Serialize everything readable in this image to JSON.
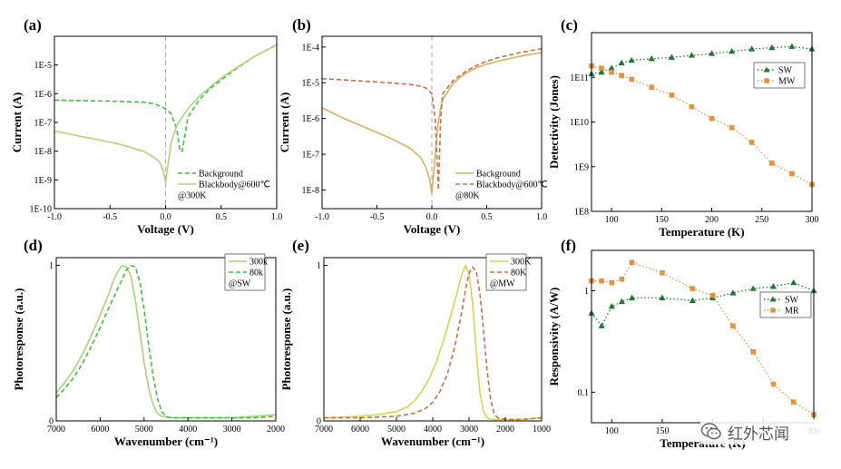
{
  "chart_data": [
    {
      "id": "a",
      "panel_label": "(a)",
      "type": "line",
      "xscale": "linear",
      "yscale": "log",
      "xlabel": "Voltage (V)",
      "ylabel": "Current (A)",
      "xlim": [
        -1.0,
        1.0
      ],
      "ylim": [
        1e-10,
        0.0001
      ],
      "xticks": [
        -1.0,
        -0.5,
        0.0,
        0.5,
        1.0
      ],
      "xtick_labels": [
        "-1.0",
        "-0.5",
        "0.0",
        "0.5",
        "1.0"
      ],
      "yticks": [
        1e-10,
        1e-09,
        1e-08,
        1e-07,
        1e-06,
        1e-05
      ],
      "ytick_labels": [
        "1E-10",
        "1E-9",
        "1E-8",
        "1E-7",
        "1E-6",
        "1E-5"
      ],
      "vline": 0.0,
      "legend_position": "bottom-right",
      "annotation": "@300K",
      "series": [
        {
          "name": "Background",
          "color": "#3cbf3c",
          "style": "dashed",
          "x": [
            -1.0,
            -0.8,
            -0.6,
            -0.4,
            -0.2,
            -0.1,
            0.0,
            0.05,
            0.1,
            0.13,
            0.15,
            0.2,
            0.3,
            0.4,
            0.5,
            0.6,
            0.8,
            1.0
          ],
          "y": [
            6e-07,
            5.8e-07,
            5.6e-07,
            5.4e-07,
            5.1e-07,
            4.5e-07,
            3e-07,
            2e-07,
            6e-08,
            1e-08,
            1e-08,
            1.5e-07,
            6e-07,
            1.5e-06,
            3e-06,
            6e-06,
            2e-05,
            5e-05
          ]
        },
        {
          "name": "Blackbody@600℃",
          "color": "#a8d878",
          "style": "solid",
          "x": [
            -1.0,
            -0.8,
            -0.6,
            -0.4,
            -0.2,
            -0.1,
            -0.05,
            -0.02,
            0.0,
            0.02,
            0.05,
            0.1,
            0.2,
            0.3,
            0.4,
            0.5,
            0.6,
            0.8,
            1.0
          ],
          "y": [
            5e-08,
            3.5e-08,
            2.5e-08,
            1.7e-08,
            1e-08,
            6e-09,
            4e-09,
            2e-09,
            8e-10,
            3e-09,
            2e-08,
            8e-08,
            3e-07,
            8e-07,
            1.7e-06,
            3.5e-06,
            6.5e-06,
            2e-05,
            5e-05
          ]
        }
      ]
    },
    {
      "id": "b",
      "panel_label": "(b)",
      "type": "line",
      "xscale": "linear",
      "yscale": "log",
      "xlabel": "Voltage (V)",
      "ylabel": "Current (A)",
      "xlim": [
        -1.0,
        1.0
      ],
      "ylim": [
        3e-09,
        0.0002
      ],
      "xticks": [
        -1.0,
        -0.5,
        0.0,
        0.5,
        1.0
      ],
      "xtick_labels": [
        "-1.0",
        "-0.5",
        "0.0",
        "0.5",
        "1.0"
      ],
      "yticks": [
        1e-08,
        1e-07,
        1e-06,
        1e-05,
        0.0001
      ],
      "ytick_labels": [
        "1E-8",
        "1E-7",
        "1E-6",
        "1E-5",
        "1E-4"
      ],
      "vline": 0.0,
      "legend_position": "bottom-right",
      "annotation": "@80K",
      "series": [
        {
          "name": "Background",
          "color": "#d9b05a",
          "style": "solid",
          "x": [
            -1.0,
            -0.8,
            -0.6,
            -0.4,
            -0.2,
            -0.1,
            -0.05,
            -0.02,
            0.0,
            0.02,
            0.05,
            0.08,
            0.1,
            0.2,
            0.3,
            0.4,
            0.5,
            0.6,
            0.8,
            1.0
          ],
          "y": [
            2e-06,
            1e-06,
            5.5e-07,
            3e-07,
            1.5e-07,
            8e-08,
            4e-08,
            2e-08,
            8e-09,
            4e-08,
            5e-07,
            2e-06,
            3.5e-06,
            1e-05,
            1.8e-05,
            2.6e-05,
            3.3e-05,
            4e-05,
            5.5e-05,
            7e-05
          ]
        },
        {
          "name": "Blackbody@600℃",
          "color": "#cd6d45",
          "style": "dashed",
          "x": [
            -1.0,
            -0.8,
            -0.6,
            -0.4,
            -0.2,
            -0.1,
            -0.05,
            0.0,
            0.03,
            0.05,
            0.06,
            0.08,
            0.1,
            0.2,
            0.3,
            0.4,
            0.5,
            0.6,
            0.8,
            1.0
          ],
          "y": [
            1.3e-05,
            1.2e-05,
            1.1e-05,
            1e-05,
            9e-06,
            8e-06,
            7e-06,
            5e-06,
            1e-06,
            5e-08,
            1e-08,
            1e-06,
            5e-06,
            1.2e-05,
            2e-05,
            3e-05,
            4e-05,
            5e-05,
            7e-05,
            9e-05
          ]
        }
      ]
    },
    {
      "id": "c",
      "panel_label": "(c)",
      "type": "line",
      "xscale": "linear",
      "yscale": "log",
      "xlabel": "Temperature (K)",
      "ylabel": "Detectivity (Jones)",
      "xlim": [
        80,
        300
      ],
      "ylim": [
        100000000.0,
        1000000000000.0
      ],
      "xticks": [
        100,
        150,
        200,
        250,
        300
      ],
      "xtick_labels": [
        "100",
        "150",
        "200",
        "250",
        "300"
      ],
      "yticks": [
        100000000.0,
        1000000000.0,
        10000000000.0,
        100000000000.0
      ],
      "ytick_labels": [
        "1E8",
        "1E9",
        "1E10",
        "1E11"
      ],
      "legend_position": "top-right",
      "series": [
        {
          "name": "SW",
          "color": "#1e7a33",
          "style": "dotted",
          "marker": "triangle",
          "x": [
            80,
            90,
            100,
            110,
            120,
            140,
            160,
            180,
            200,
            220,
            240,
            260,
            280,
            300
          ],
          "y": [
            120000000000.0,
            130000000000.0,
            160000000000.0,
            210000000000.0,
            240000000000.0,
            260000000000.0,
            280000000000.0,
            310000000000.0,
            340000000000.0,
            380000000000.0,
            430000000000.0,
            460000000000.0,
            490000000000.0,
            430000000000.0
          ]
        },
        {
          "name": "MW",
          "color": "#e8913a",
          "style": "dotted",
          "marker": "square",
          "x": [
            80,
            90,
            100,
            110,
            120,
            140,
            160,
            180,
            200,
            220,
            240,
            260,
            280,
            300
          ],
          "y": [
            180000000000.0,
            160000000000.0,
            130000000000.0,
            110000000000.0,
            90000000000.0,
            60000000000.0,
            40000000000.0,
            22000000000.0,
            12000000000.0,
            7500000000.0,
            3500000000.0,
            1200000000.0,
            700000000.0,
            400000000.0
          ]
        }
      ]
    },
    {
      "id": "d",
      "panel_label": "(d)",
      "type": "line",
      "xscale": "linear",
      "yscale": "linear",
      "xlabel": "Wavenumber (cm⁻¹)",
      "ylabel": "Photoresponse (a.u.)",
      "xlim": [
        7000,
        2000
      ],
      "ylim": [
        0,
        1.05
      ],
      "xticks": [
        7000,
        6000,
        5000,
        4000,
        3000,
        2000
      ],
      "xtick_labels": [
        "7000",
        "6000",
        "5000",
        "4000",
        "3000",
        "2000"
      ],
      "yticks": [
        0,
        1
      ],
      "ytick_labels": [
        "0",
        "1"
      ],
      "legend_position": "top-right",
      "annotation": "@SW",
      "series": [
        {
          "name": "300k",
          "color": "#a9d576",
          "style": "solid",
          "x": [
            7000,
            6800,
            6600,
            6400,
            6200,
            6000,
            5800,
            5700,
            5600,
            5500,
            5400,
            5300,
            5200,
            5100,
            5000,
            4900,
            4800,
            4700,
            4600,
            4400,
            4200,
            4000,
            3000,
            2500,
            2000
          ],
          "y": [
            0.18,
            0.25,
            0.33,
            0.43,
            0.55,
            0.68,
            0.82,
            0.9,
            0.96,
            1.0,
            0.99,
            0.93,
            0.78,
            0.58,
            0.38,
            0.22,
            0.11,
            0.05,
            0.03,
            0.02,
            0.02,
            0.02,
            0.02,
            0.03,
            0.04
          ]
        },
        {
          "name": "80k",
          "color": "#3cbf3c",
          "style": "dashed",
          "x": [
            7000,
            6800,
            6600,
            6400,
            6200,
            6000,
            5800,
            5600,
            5500,
            5400,
            5300,
            5200,
            5100,
            5000,
            4900,
            4800,
            4700,
            4600,
            4500,
            4400,
            4200,
            4000,
            3000,
            2500,
            2000
          ],
          "y": [
            0.15,
            0.21,
            0.28,
            0.37,
            0.48,
            0.6,
            0.73,
            0.85,
            0.91,
            0.97,
            1.0,
            0.99,
            0.9,
            0.72,
            0.5,
            0.3,
            0.15,
            0.06,
            0.03,
            0.02,
            0.02,
            0.02,
            0.02,
            0.02,
            0.03
          ]
        }
      ]
    },
    {
      "id": "e",
      "panel_label": "(e)",
      "type": "line",
      "xscale": "linear",
      "yscale": "linear",
      "xlabel": "Wavenumber (cm⁻¹)",
      "ylabel": "Photoresponse (a.u.)",
      "xlim": [
        7000,
        1000
      ],
      "ylim": [
        0,
        1.05
      ],
      "xticks": [
        7000,
        6000,
        5000,
        4000,
        3000,
        2000,
        1000
      ],
      "xtick_labels": [
        "7000",
        "6000",
        "5000",
        "4000",
        "3000",
        "2000",
        "1000"
      ],
      "yticks": [
        0,
        1
      ],
      "ytick_labels": [
        "0",
        "1"
      ],
      "legend_position": "top-right",
      "annotation": "@MW",
      "series": [
        {
          "name": "300K",
          "color": "#d7d34b",
          "style": "solid",
          "x": [
            7000,
            6000,
            5500,
            5000,
            4700,
            4500,
            4300,
            4100,
            3900,
            3700,
            3500,
            3300,
            3200,
            3100,
            3000,
            2900,
            2800,
            2700,
            2600,
            2500,
            2400,
            2000,
            1500,
            1000
          ],
          "y": [
            0.02,
            0.03,
            0.04,
            0.06,
            0.09,
            0.13,
            0.19,
            0.27,
            0.38,
            0.52,
            0.68,
            0.85,
            0.94,
            1.0,
            0.95,
            0.75,
            0.45,
            0.18,
            0.06,
            0.02,
            0.01,
            0.01,
            0.01,
            0.02
          ]
        },
        {
          "name": "80K",
          "color": "#cd6d45",
          "style": "dashed",
          "x": [
            7000,
            6000,
            5000,
            4500,
            4200,
            4000,
            3800,
            3600,
            3400,
            3200,
            3100,
            3000,
            2900,
            2800,
            2700,
            2600,
            2500,
            2400,
            2300,
            2200,
            2000,
            1500,
            1000
          ],
          "y": [
            0.02,
            0.02,
            0.03,
            0.05,
            0.08,
            0.12,
            0.19,
            0.3,
            0.47,
            0.7,
            0.84,
            0.95,
            0.99,
            0.96,
            0.82,
            0.58,
            0.32,
            0.13,
            0.04,
            0.02,
            0.01,
            0.01,
            0.02
          ]
        }
      ]
    },
    {
      "id": "f",
      "panel_label": "(f)",
      "type": "line",
      "xscale": "linear",
      "yscale": "log",
      "xlabel": "Temperature (K)",
      "ylabel": "Responsivity (A/W)",
      "xlim": [
        80,
        300
      ],
      "ylim": [
        0.05,
        2.5
      ],
      "xticks": [
        100,
        150,
        200,
        250,
        300
      ],
      "xtick_labels": [
        "100",
        "150",
        "200",
        "250",
        "300"
      ],
      "yticks": [
        0.1,
        1
      ],
      "ytick_labels": [
        "0.1",
        "1"
      ],
      "legend_position": "right",
      "series": [
        {
          "name": "SW",
          "color": "#1e7a33",
          "style": "dotted",
          "marker": "triangle",
          "x": [
            80,
            90,
            100,
            110,
            120,
            150,
            180,
            200,
            220,
            240,
            260,
            280,
            300
          ],
          "y": [
            0.6,
            0.45,
            0.7,
            0.78,
            0.85,
            0.85,
            0.8,
            0.85,
            0.95,
            1.05,
            1.1,
            1.2,
            1.0
          ]
        },
        {
          "name": "MR",
          "color": "#e8913a",
          "style": "dotted",
          "marker": "square",
          "x": [
            80,
            90,
            100,
            110,
            120,
            150,
            180,
            200,
            220,
            240,
            260,
            280,
            300
          ],
          "y": [
            1.25,
            1.25,
            1.2,
            1.3,
            1.9,
            1.5,
            1.05,
            0.9,
            0.45,
            0.25,
            0.12,
            0.08,
            0.06
          ]
        }
      ]
    }
  ],
  "watermark": {
    "text": "红外芯闻",
    "icon": "wechat-icon"
  }
}
